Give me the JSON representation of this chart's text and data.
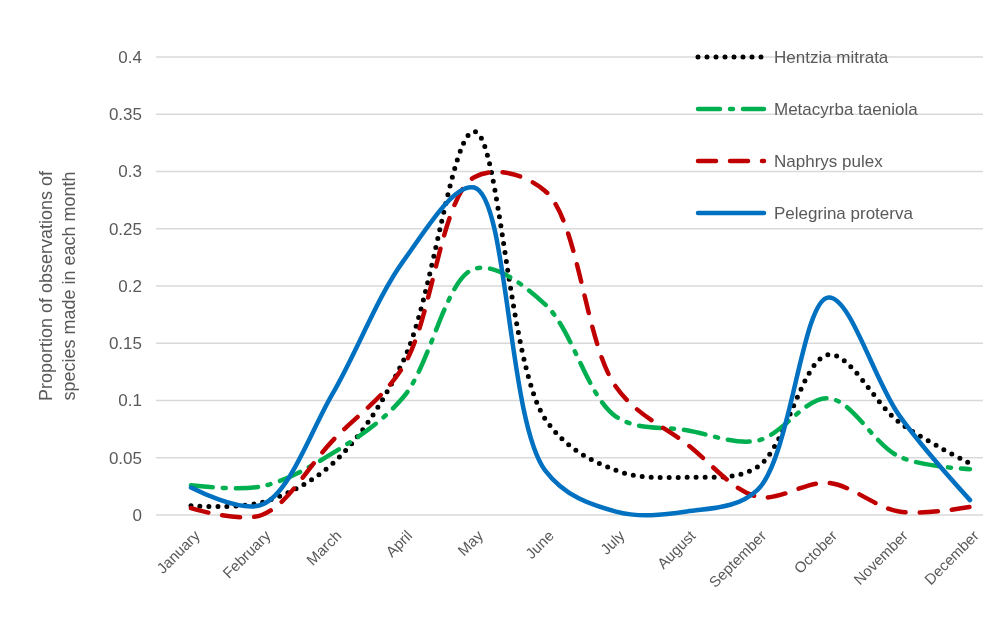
{
  "chart_data": {
    "type": "line",
    "ylabel": "Proportion of observations of species made in each month",
    "categories": [
      "January",
      "February",
      "March",
      "April",
      "May",
      "June",
      "July",
      "August",
      "September",
      "October",
      "November",
      "December"
    ],
    "ylim": [
      0,
      0.4
    ],
    "yticks": [
      0,
      0.05,
      0.1,
      0.15,
      0.2,
      0.25,
      0.3,
      0.35,
      0.4
    ],
    "grid": "y",
    "legend": "top right",
    "marker": "none",
    "series": [
      {
        "name": "Hentzia mitrata",
        "color": "#000000",
        "line_style": "dotted",
        "values": [
          0.008,
          0.011,
          0.045,
          0.135,
          0.335,
          0.084,
          0.039,
          0.033,
          0.042,
          0.14,
          0.081,
          0.045
        ]
      },
      {
        "name": "Metacyrba taeniola",
        "color": "#00b050",
        "line_style": "dashed",
        "values": [
          0.026,
          0.025,
          0.054,
          0.103,
          0.215,
          0.184,
          0.086,
          0.074,
          0.065,
          0.102,
          0.051,
          0.04
        ]
      },
      {
        "name": "Naphrys pulex",
        "color": "#c00000",
        "line_style": "dashed",
        "values": [
          0.006,
          0,
          0.065,
          0.13,
          0.295,
          0.283,
          0.112,
          0.062,
          0.016,
          0.028,
          0.003,
          0.007
        ]
      },
      {
        "name": "Pelegrina proterva",
        "color": "#0070c0",
        "line_style": "solid",
        "values": [
          0.024,
          0.009,
          0.106,
          0.222,
          0.286,
          0.039,
          0.003,
          0.003,
          0.022,
          0.19,
          0.087,
          0.013
        ]
      }
    ]
  }
}
